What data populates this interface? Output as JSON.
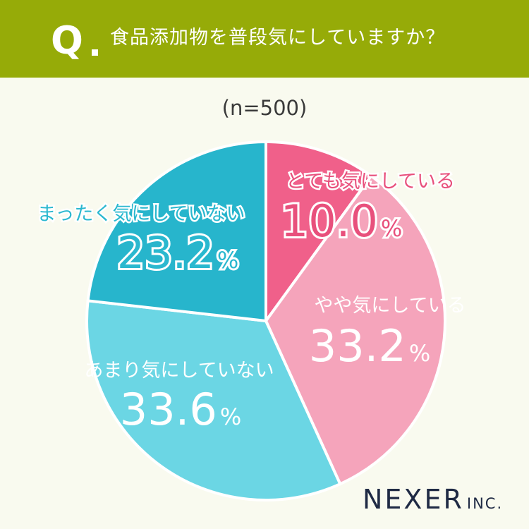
{
  "header": {
    "q_mark": "Q",
    "question": "食品添加物を普段気にしていますか？",
    "bg_color": "#96ab08"
  },
  "sample_size": "(n=500)",
  "brand": {
    "name": "NEXER",
    "suffix": "INC."
  },
  "chart_data": {
    "type": "pie",
    "title": "食品添加物を普段気にしていますか？",
    "subtitle": "(n=500)",
    "start": "12 o'clock",
    "direction": "clockwise",
    "unit": "%",
    "slices": [
      {
        "label": "とても気にしている",
        "value": 10.0,
        "display": "10.0",
        "color": "#f0608a",
        "label_color": "#e8507c"
      },
      {
        "label": "やや気にしている",
        "value": 33.2,
        "display": "33.2",
        "color": "#f5a4bb",
        "label_color": "#ffffff"
      },
      {
        "label": "あまり気にしていない",
        "value": 33.6,
        "display": "33.6",
        "color": "#6bd6e4",
        "label_color": "#ffffff"
      },
      {
        "label": "まったく気にしていない",
        "value": 23.2,
        "display": "23.2",
        "color": "#27b5cc",
        "label_color": "#2ab8cf"
      }
    ]
  }
}
